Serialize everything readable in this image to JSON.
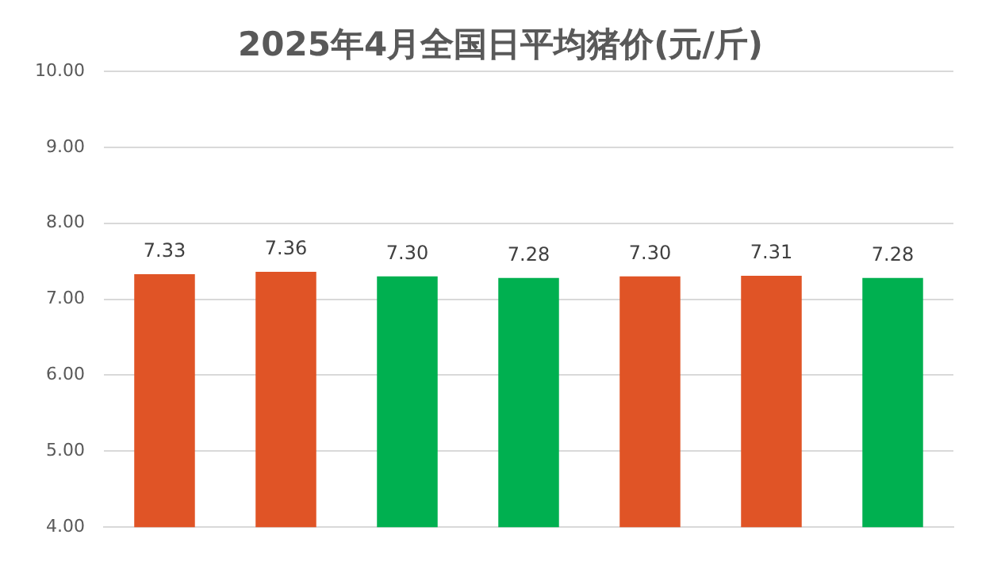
{
  "chart_data": {
    "type": "bar",
    "title": "2025年4月全国日平均猪价(元/斤)",
    "categories": [
      null,
      null,
      null,
      null,
      null,
      null,
      null
    ],
    "values": [
      7.33,
      7.36,
      7.3,
      7.28,
      7.3,
      7.31,
      7.28
    ],
    "colors": [
      "#e05426",
      "#e05426",
      "#00b050",
      "#00b050",
      "#e05426",
      "#e05426",
      "#00b050"
    ],
    "ylim": [
      4,
      10
    ],
    "yticks": [
      {
        "value": 4,
        "label": "4.00"
      },
      {
        "value": 5,
        "label": "5.00"
      },
      {
        "value": 6,
        "label": "6.00"
      },
      {
        "value": 7,
        "label": "7.00"
      },
      {
        "value": 8,
        "label": "8.00"
      },
      {
        "value": 9,
        "label": "9.00"
      },
      {
        "value": 10,
        "label": "10.00"
      }
    ],
    "value_labels": [
      "7.33",
      "7.36",
      "7.30",
      "7.28",
      "7.30",
      "7.31",
      "7.28"
    ],
    "grid": "y"
  }
}
